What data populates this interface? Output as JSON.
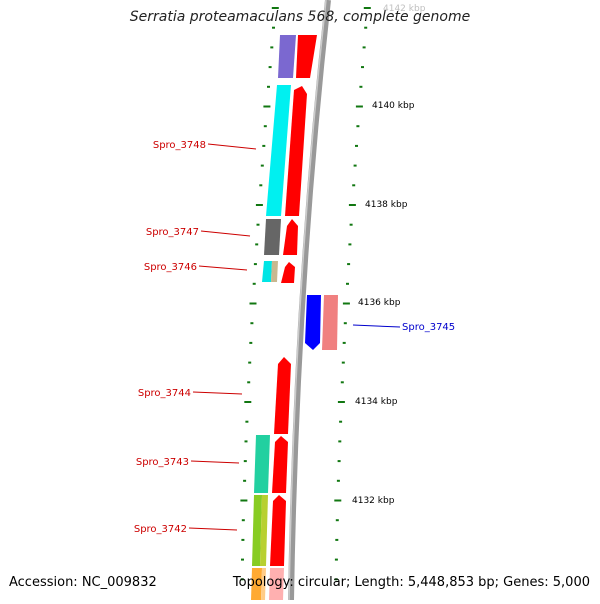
{
  "title": "Serratia proteamaculans 568, complete genome",
  "footer": {
    "accession": "Accession: NC_009832",
    "summary": "Topology: circular; Length: 5,448,853 bp; Genes: 5,000"
  },
  "scale_labels": [
    "4142 kbp",
    "4140 kbp",
    "4138 kbp",
    "4136 kbp",
    "4134 kbp",
    "4132 kbp"
  ],
  "genes": [
    {
      "label": "Spro_3748",
      "color": "#cc0000"
    },
    {
      "label": "Spro_3747",
      "color": "#cc0000"
    },
    {
      "label": "Spro_3746",
      "color": "#cc0000"
    },
    {
      "label": "Spro_3745",
      "color": "#0000cc"
    },
    {
      "label": "Spro_3744",
      "color": "#cc0000"
    },
    {
      "label": "Spro_3743",
      "color": "#cc0000"
    },
    {
      "label": "Spro_3742",
      "color": "#cc0000"
    }
  ],
  "colors": {
    "forward_cds": "#ff0000",
    "reverse_cds": "#0000ff",
    "reverse_rna": "#f08080",
    "tick": "#117711",
    "backbone": "#999999"
  }
}
